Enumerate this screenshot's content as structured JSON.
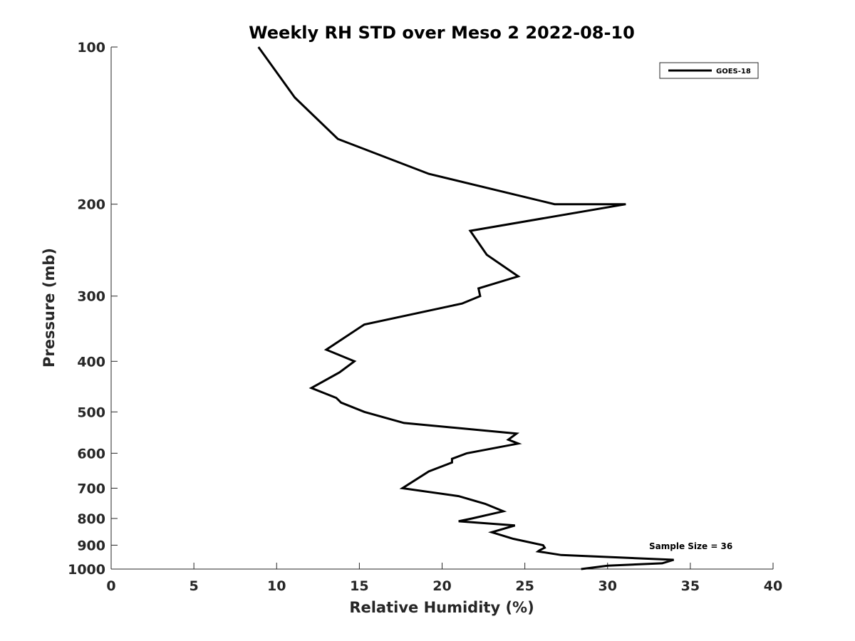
{
  "chart_data": {
    "type": "line",
    "title": "Weekly RH STD over Meso 2 2022-08-10",
    "xlabel": "Relative Humidity (%)",
    "ylabel": "Pressure (mb)",
    "xlim": [
      0,
      40
    ],
    "ylim": [
      100,
      1000
    ],
    "y_scale": "log",
    "y_reversed": true,
    "x_ticks": [
      "0",
      "5",
      "10",
      "15",
      "20",
      "25",
      "30",
      "35",
      "40"
    ],
    "y_ticks": [
      "100",
      "200",
      "300",
      "400",
      "500",
      "600",
      "700",
      "800",
      "900",
      "1000"
    ],
    "grid": false,
    "legend": {
      "position": "top-right",
      "entries": [
        "GOES-18"
      ]
    },
    "annotation": "Sample Size = 36",
    "series": [
      {
        "name": "GOES-18",
        "color": "#000000",
        "points": [
          [
            8.9,
            100
          ],
          [
            11.1,
            125
          ],
          [
            13.7,
            150
          ],
          [
            19.2,
            175
          ],
          [
            26.8,
            200
          ],
          [
            31.1,
            200
          ],
          [
            21.7,
            225
          ],
          [
            22.7,
            250
          ],
          [
            24.6,
            275
          ],
          [
            22.2,
            290
          ],
          [
            22.3,
            300
          ],
          [
            21.2,
            310
          ],
          [
            15.3,
            340
          ],
          [
            13.0,
            380
          ],
          [
            14.7,
            400
          ],
          [
            13.8,
            420
          ],
          [
            12.1,
            450
          ],
          [
            13.6,
            470
          ],
          [
            13.9,
            480
          ],
          [
            15.3,
            500
          ],
          [
            17.7,
            525
          ],
          [
            24.5,
            550
          ],
          [
            24.0,
            565
          ],
          [
            24.6,
            575
          ],
          [
            21.5,
            600
          ],
          [
            20.6,
            615
          ],
          [
            20.6,
            625
          ],
          [
            19.2,
            650
          ],
          [
            17.6,
            700
          ],
          [
            21.0,
            725
          ],
          [
            22.6,
            750
          ],
          [
            23.7,
            775
          ],
          [
            21.8,
            800
          ],
          [
            21.0,
            810
          ],
          [
            24.4,
            825
          ],
          [
            23.0,
            850
          ],
          [
            24.3,
            875
          ],
          [
            26.1,
            900
          ],
          [
            26.2,
            910
          ],
          [
            25.9,
            920
          ],
          [
            25.8,
            925
          ],
          [
            27.2,
            940
          ],
          [
            34.0,
            960
          ],
          [
            33.3,
            975
          ],
          [
            30.0,
            985
          ],
          [
            28.4,
            1000
          ]
        ]
      }
    ]
  }
}
